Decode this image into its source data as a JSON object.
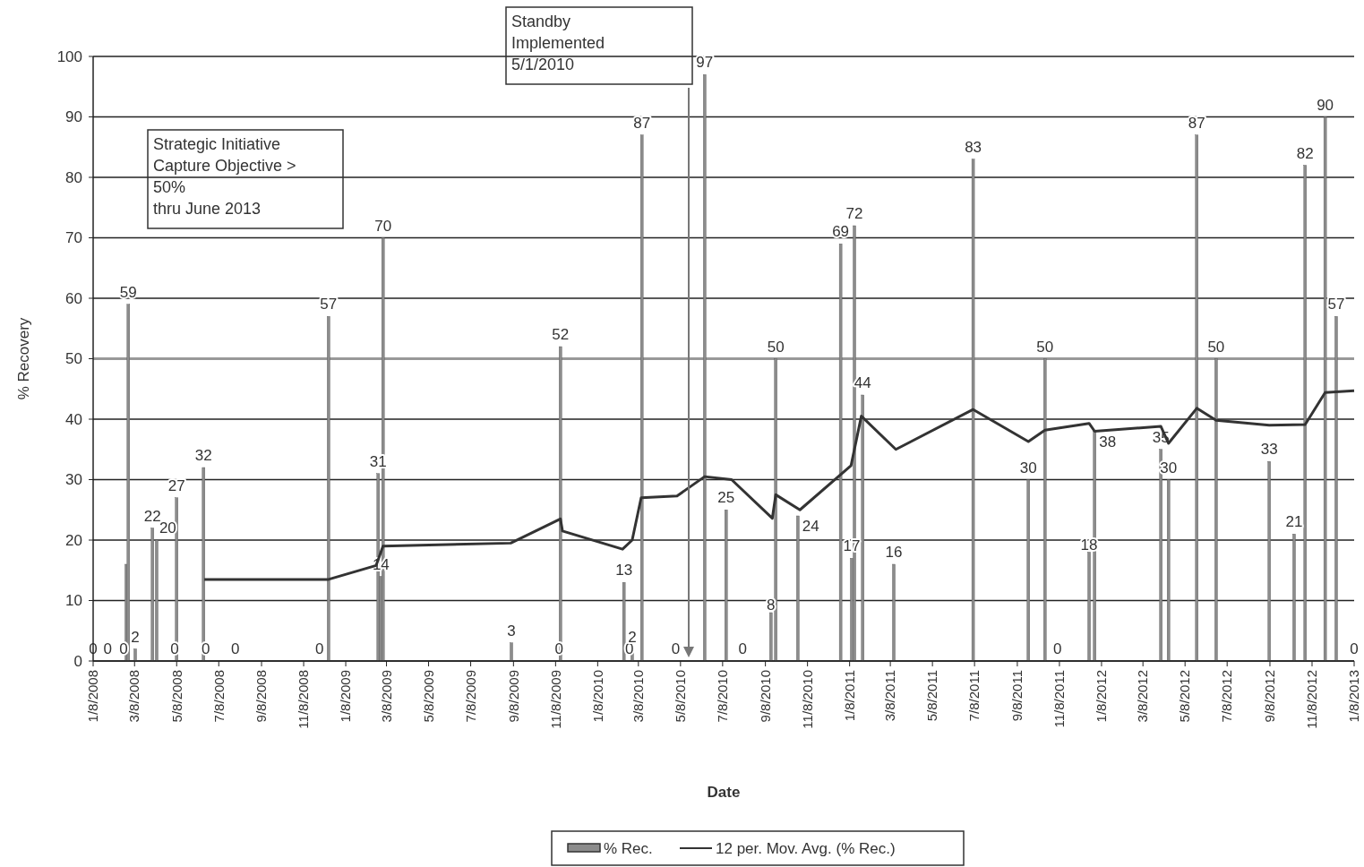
{
  "chart_data": {
    "type": "bar",
    "xlabel": "Date",
    "ylabel": "% Recovery",
    "ylim": [
      0,
      100
    ],
    "yticks": [
      0,
      10,
      20,
      30,
      40,
      50,
      60,
      70,
      80,
      90,
      100
    ],
    "xlim": [
      "2008-01-08",
      "2013-01-08"
    ],
    "xticks": [
      {
        "value": "2008-01-08",
        "label": "1/8/2008"
      },
      {
        "value": "2008-03-08",
        "label": "3/8/2008"
      },
      {
        "value": "2008-05-08",
        "label": "5/8/2008"
      },
      {
        "value": "2008-07-08",
        "label": "7/8/2008"
      },
      {
        "value": "2008-09-08",
        "label": "9/8/2008"
      },
      {
        "value": "2008-11-08",
        "label": "11/8/2008"
      },
      {
        "value": "2009-01-08",
        "label": "1/8/2009"
      },
      {
        "value": "2009-03-08",
        "label": "3/8/2009"
      },
      {
        "value": "2009-05-08",
        "label": "5/8/2009"
      },
      {
        "value": "2009-07-08",
        "label": "7/8/2009"
      },
      {
        "value": "2009-09-08",
        "label": "9/8/2009"
      },
      {
        "value": "2009-11-08",
        "label": "11/8/2009"
      },
      {
        "value": "2010-01-08",
        "label": "1/8/2010"
      },
      {
        "value": "2010-03-08",
        "label": "3/8/2010"
      },
      {
        "value": "2010-05-08",
        "label": "5/8/2010"
      },
      {
        "value": "2010-07-08",
        "label": "7/8/2010"
      },
      {
        "value": "2010-09-08",
        "label": "9/8/2010"
      },
      {
        "value": "2010-11-08",
        "label": "11/8/2010"
      },
      {
        "value": "2011-01-08",
        "label": "1/8/2011"
      },
      {
        "value": "2011-03-08",
        "label": "3/8/2011"
      },
      {
        "value": "2011-05-08",
        "label": "5/8/2011"
      },
      {
        "value": "2011-07-08",
        "label": "7/8/2011"
      },
      {
        "value": "2011-09-08",
        "label": "9/8/2011"
      },
      {
        "value": "2011-11-08",
        "label": "11/8/2011"
      },
      {
        "value": "2012-01-08",
        "label": "1/8/2012"
      },
      {
        "value": "2012-03-08",
        "label": "3/8/2012"
      },
      {
        "value": "2012-05-08",
        "label": "5/8/2012"
      },
      {
        "value": "2012-07-08",
        "label": "7/8/2012"
      },
      {
        "value": "2012-09-08",
        "label": "9/8/2012"
      },
      {
        "value": "2012-11-08",
        "label": "11/8/2012"
      },
      {
        "value": "2013-01-08",
        "label": "1/8/2013"
      }
    ],
    "grid": "y",
    "legend": "bottom",
    "series": [
      {
        "name": "% Rec.",
        "color": "#8c8c8c",
        "x": [
          "2008-01-08",
          "2008-01-29",
          "2008-02-21",
          "2008-02-25",
          "2008-02-28",
          "2008-03-09",
          "2008-04-03",
          "2008-04-09",
          "2008-05-05",
          "2008-05-08",
          "2008-06-16",
          "2008-06-19",
          "2008-08-01",
          "2008-12-01",
          "2008-12-14",
          "2009-02-24",
          "2009-02-28",
          "2009-03-03",
          "2009-09-05",
          "2009-11-13",
          "2009-11-15",
          "2010-02-13",
          "2010-02-15",
          "2010-02-27",
          "2010-03-13",
          "2010-05-01",
          "2010-06-12",
          "2010-07-13",
          "2010-08-06",
          "2010-09-16",
          "2010-09-23",
          "2010-10-25",
          "2010-12-26",
          "2011-01-11",
          "2011-01-15",
          "2011-01-27",
          "2011-03-13",
          "2011-07-06",
          "2011-09-24",
          "2011-10-18",
          "2011-11-05",
          "2011-12-21",
          "2011-12-29",
          "2012-04-03",
          "2012-04-14",
          "2012-05-25",
          "2012-06-22",
          "2012-09-07",
          "2012-10-13",
          "2012-10-29",
          "2012-11-27",
          "2012-12-13",
          "2013-01-08"
        ],
        "values": [
          0,
          0,
          0,
          16,
          59,
          2,
          22,
          20,
          0,
          27,
          32,
          0,
          0,
          0,
          57,
          31,
          14,
          70,
          3,
          0,
          52,
          0,
          13,
          2,
          87,
          0,
          97,
          25,
          0,
          8,
          50,
          24,
          69,
          17,
          72,
          44,
          16,
          83,
          30,
          50,
          0,
          18,
          38,
          35,
          30,
          87,
          50,
          33,
          21,
          82,
          90,
          57,
          0
        ],
        "value_labels": [
          "0",
          "0",
          "0",
          null,
          "59",
          "2",
          "22",
          "20",
          "0",
          "27",
          "32",
          "0",
          "0",
          "0",
          "57",
          "31",
          "14",
          "70",
          "3",
          "0",
          "52",
          "0",
          "13",
          "2",
          "87",
          "0",
          "97",
          "25",
          "0",
          "8",
          "50",
          "24",
          "69",
          "17",
          "72",
          "44",
          "16",
          "83",
          "30",
          "50",
          "0",
          "18",
          "38",
          "35",
          "30",
          "87",
          "50",
          "33",
          "21",
          "82",
          "90",
          "57",
          "0"
        ]
      },
      {
        "name": "12 per. Mov. Avg. (% Rec.)",
        "type": "line",
        "color": "#333333",
        "x": [
          "2008-06-17",
          "2008-12-14",
          "2009-02-21",
          "2009-03-03",
          "2009-09-04",
          "2009-11-15",
          "2009-11-18",
          "2010-02-13",
          "2010-02-27",
          "2010-03-12",
          "2010-05-03",
          "2010-06-12",
          "2010-07-21",
          "2010-09-18",
          "2010-09-23",
          "2010-10-28",
          "2011-01-10",
          "2011-01-25",
          "2011-03-16",
          "2011-07-06",
          "2011-09-24",
          "2011-10-18",
          "2011-12-21",
          "2011-12-29",
          "2012-04-03",
          "2012-04-14",
          "2012-05-25",
          "2012-06-22",
          "2012-09-07",
          "2012-10-29",
          "2012-11-27",
          "2013-01-08"
        ],
        "values": [
          13.5,
          13.5,
          15.8,
          19,
          19.5,
          23.5,
          21.5,
          18.5,
          20,
          27,
          27.3,
          30.5,
          30,
          23.6,
          27.5,
          25,
          32.3,
          40.5,
          35,
          41.6,
          36.3,
          38.2,
          39.3,
          38,
          38.8,
          36,
          41.8,
          39.8,
          39,
          39.1,
          44.4,
          44.7
        ]
      }
    ],
    "ref_lines": [
      {
        "axis": "y",
        "value": 50,
        "color": "#999999"
      }
    ],
    "annotations": [
      "Strategic Initiative\nCapture Objective >\n50%\nthru June 2013",
      "Standby\nImplemented\n5/1/2010"
    ]
  }
}
